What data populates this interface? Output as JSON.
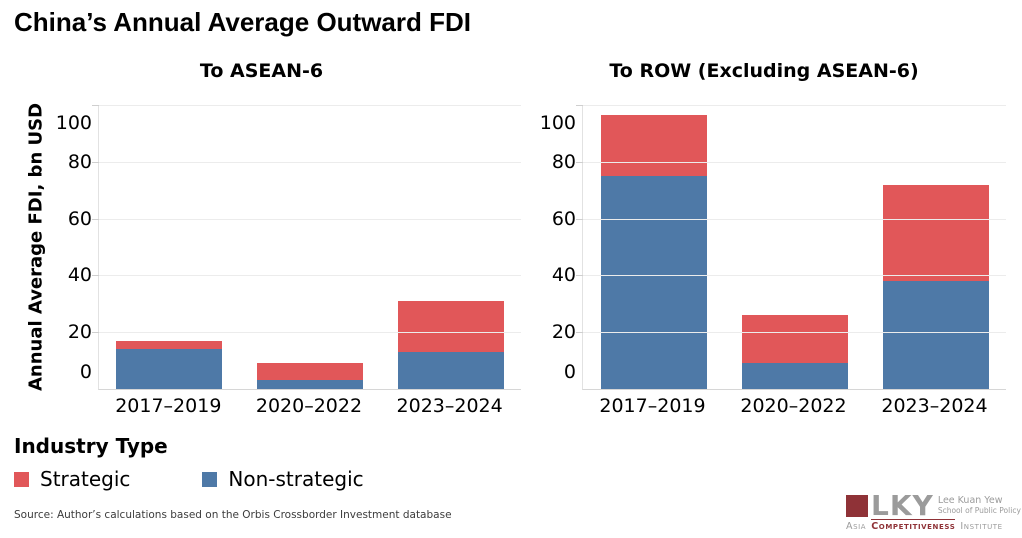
{
  "header": {
    "title": "China’s Annual Average Outward FDI"
  },
  "chart_data": [
    {
      "type": "bar",
      "stacked": true,
      "title": "To ASEAN-6",
      "categories": [
        "2017–2019",
        "2020–2022",
        "2023–2024"
      ],
      "series": [
        {
          "name": "Non-strategic",
          "color": "#4E79A7",
          "values": [
            14,
            3,
            13
          ]
        },
        {
          "name": "Strategic",
          "color": "#E15759",
          "values": [
            3,
            6,
            18
          ]
        }
      ],
      "ylabel": "Annual Average FDI, bn USD",
      "xlabel": "",
      "ylim": [
        0,
        100
      ],
      "yticks": [
        0,
        20,
        40,
        60,
        80,
        100
      ],
      "grid": true,
      "legend_position": "bottom-left"
    },
    {
      "type": "bar",
      "stacked": true,
      "title": "To ROW (Excluding ASEAN-6)",
      "categories": [
        "2017–2019",
        "2020–2022",
        "2023–2024"
      ],
      "series": [
        {
          "name": "Non-strategic",
          "color": "#4E79A7",
          "values": [
            75,
            9,
            38
          ]
        },
        {
          "name": "Strategic",
          "color": "#E15759",
          "values": [
            21.5,
            17,
            34
          ]
        }
      ],
      "ylabel": "",
      "xlabel": "",
      "ylim": [
        0,
        100
      ],
      "yticks": [
        0,
        20,
        40,
        60,
        80,
        100
      ],
      "grid": true
    }
  ],
  "legend": {
    "title": "Industry Type",
    "items": [
      {
        "label": "Strategic",
        "color": "#E15759"
      },
      {
        "label": "Non-strategic",
        "color": "#4E79A7"
      }
    ]
  },
  "source": {
    "text": "Source: Author’s calculations based on the Orbis Crossborder Investment database"
  },
  "logo": {
    "letters": "LKY",
    "school_line1": "Lee Kuan Yew",
    "school_line2": "School of Public Policy",
    "institute_line": [
      "Asia",
      "Competitiveness",
      "Institute"
    ],
    "maroon": "#8F3237",
    "gray": "#9B9B9B"
  },
  "colors": {
    "strategic": "#E15759",
    "non_strategic": "#4E79A7",
    "gridline": "#ECECEC",
    "axis_line": "#D6D6D6",
    "background": "#FFFFFF"
  }
}
